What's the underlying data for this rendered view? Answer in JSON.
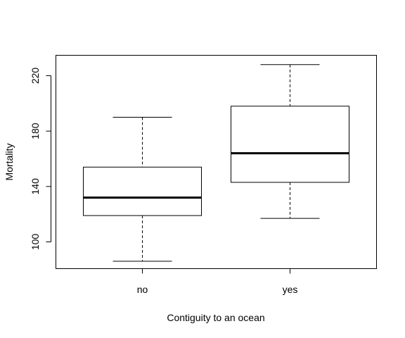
{
  "chart_data": {
    "type": "boxplot",
    "title": "",
    "xlabel": "Contiguity to an ocean",
    "ylabel": "Mortality",
    "categories": [
      "no",
      "yes"
    ],
    "ylim": [
      80,
      230
    ],
    "yticks": [
      100,
      140,
      180,
      220
    ],
    "boxes": [
      {
        "name": "no",
        "whisker_low": 86,
        "q1": 119,
        "median": 132,
        "q3": 154,
        "whisker_high": 190
      },
      {
        "name": "yes",
        "whisker_low": 117,
        "q1": 143,
        "median": 164,
        "q3": 198,
        "whisker_high": 228
      }
    ]
  }
}
